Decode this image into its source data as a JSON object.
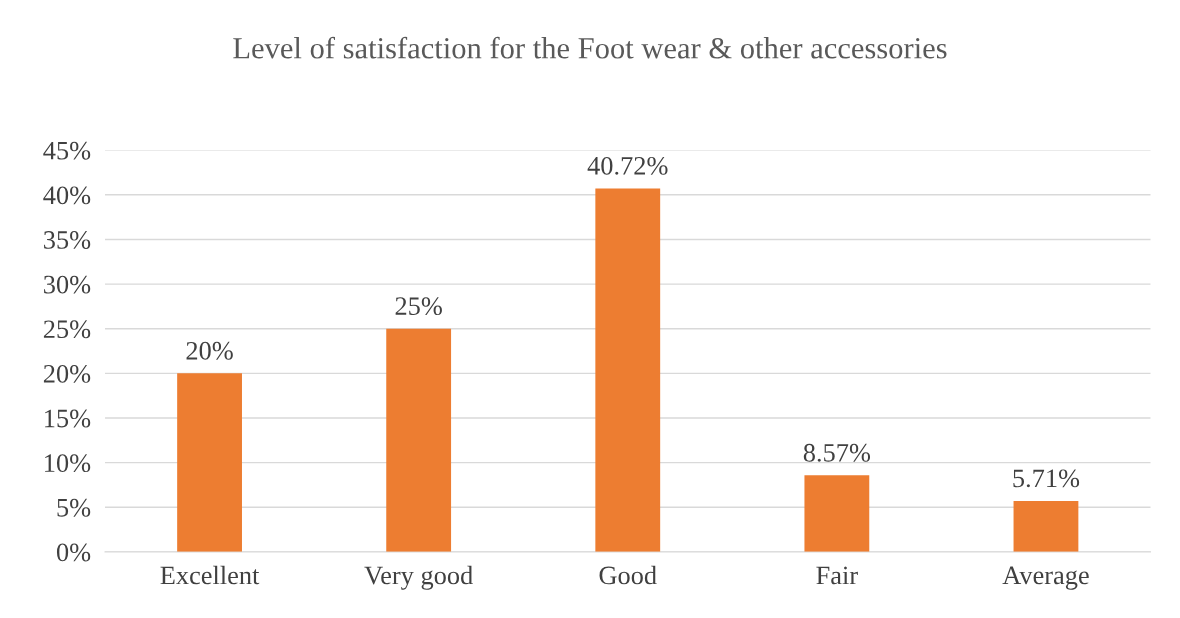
{
  "chart_data": {
    "type": "bar",
    "title": "Level of satisfaction for the Foot wear & other accessories",
    "categories": [
      "Excellent",
      "Very good",
      "Good",
      "Fair",
      "Average"
    ],
    "values": [
      20,
      25,
      40.72,
      8.57,
      5.71
    ],
    "value_labels": [
      "20%",
      "25%",
      "40.72%",
      "8.57%",
      "5.71%"
    ],
    "color": "#ed7d31",
    "ylim": [
      0,
      45
    ],
    "yticks": [
      {
        "value": 0,
        "label": "0%"
      },
      {
        "value": 5,
        "label": "5%"
      },
      {
        "value": 10,
        "label": "10%"
      },
      {
        "value": 15,
        "label": "15%"
      },
      {
        "value": 20,
        "label": "20%"
      },
      {
        "value": 25,
        "label": "25%"
      },
      {
        "value": 30,
        "label": "30%"
      },
      {
        "value": 35,
        "label": "35%"
      },
      {
        "value": 40,
        "label": "40%"
      },
      {
        "value": 45,
        "label": "45%"
      }
    ],
    "grid": "y",
    "legend": false
  }
}
